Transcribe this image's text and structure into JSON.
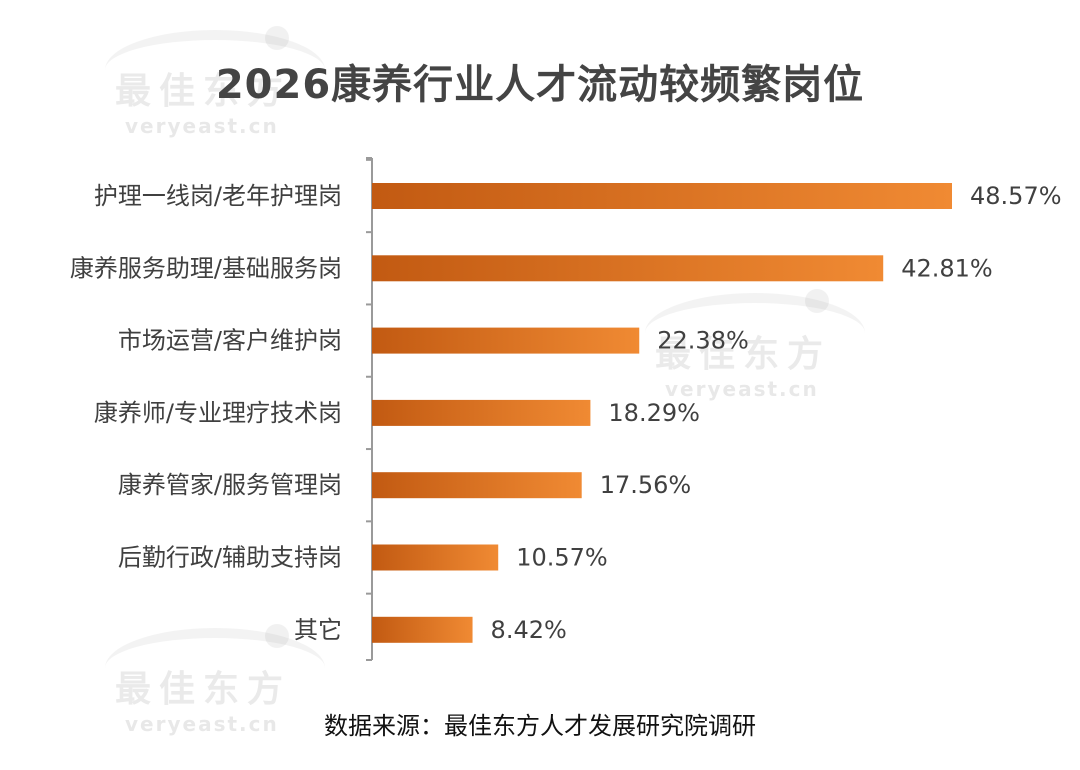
{
  "title": "2026康养行业人才流动较频繁岗位",
  "source": "数据来源：最佳东方人才发展研究院调研",
  "watermark": {
    "cn": "最佳东方",
    "en": "veryeast.cn"
  },
  "colors": {
    "bar_dark": "#c25a12",
    "bar_light": "#f08a33",
    "axis": "#9a9a9a",
    "text": "#404040"
  },
  "chart_data": {
    "type": "bar",
    "orientation": "horizontal",
    "categories": [
      "护理一线岗/老年护理岗",
      "康养服务助理/基础服务岗",
      "市场运营/客户维护岗",
      "康养师/专业理疗技术岗",
      "康养管家/服务管理岗",
      "后勤行政/辅助支持岗",
      "其它"
    ],
    "values": [
      48.57,
      42.81,
      22.38,
      18.29,
      17.56,
      10.57,
      8.42
    ],
    "value_labels": [
      "48.57%",
      "42.81%",
      "22.38%",
      "18.29%",
      "17.56%",
      "10.57%",
      "8.42%"
    ],
    "unit": "%",
    "xlim": [
      0,
      48.57
    ],
    "grid": false,
    "legend": "none"
  }
}
